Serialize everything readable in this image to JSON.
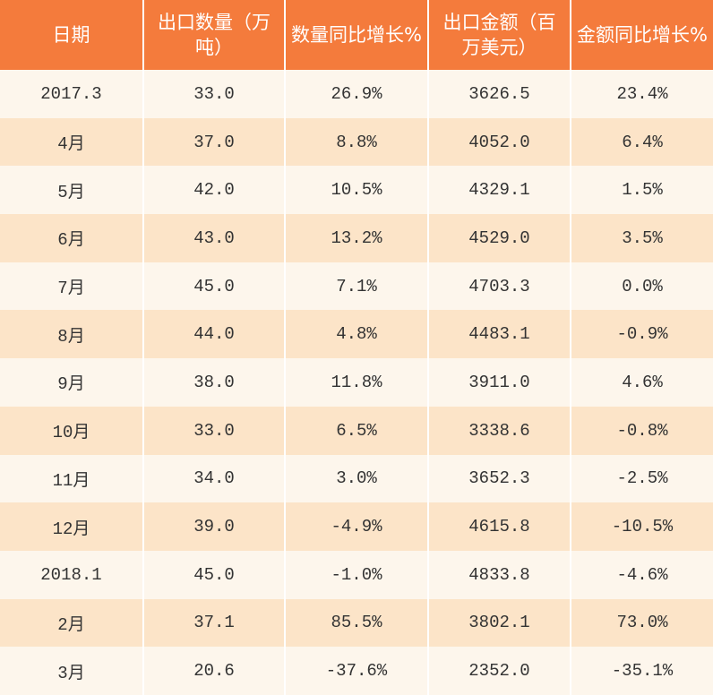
{
  "chart_data": {
    "type": "table",
    "columns": [
      "日期",
      "出口数量（万吨）",
      "数量同比增长%",
      "出口金额（百万美元）",
      "金额同比增长%"
    ],
    "rows": [
      [
        "2017.3",
        "33.0",
        "26.9%",
        "3626.5",
        "23.4%"
      ],
      [
        "4月",
        "37.0",
        "8.8%",
        "4052.0",
        "6.4%"
      ],
      [
        "5月",
        "42.0",
        "10.5%",
        "4329.1",
        "1.5%"
      ],
      [
        "6月",
        "43.0",
        "13.2%",
        "4529.0",
        "3.5%"
      ],
      [
        "7月",
        "45.0",
        "7.1%",
        "4703.3",
        "0.0%"
      ],
      [
        "8月",
        "44.0",
        "4.8%",
        "4483.1",
        "-0.9%"
      ],
      [
        "9月",
        "38.0",
        "11.8%",
        "3911.0",
        "4.6%"
      ],
      [
        "10月",
        "33.0",
        "6.5%",
        "3338.6",
        "-0.8%"
      ],
      [
        "11月",
        "34.0",
        "3.0%",
        "3652.3",
        "-2.5%"
      ],
      [
        "12月",
        "39.0",
        "-4.9%",
        "4615.8",
        "-10.5%"
      ],
      [
        "2018.1",
        "45.0",
        "-1.0%",
        "4833.8",
        "-4.6%"
      ],
      [
        "2月",
        "37.1",
        "85.5%",
        "3802.1",
        "73.0%"
      ],
      [
        "3月",
        "20.6",
        "-37.6%",
        "2352.0",
        "-35.1%"
      ]
    ]
  },
  "colors": {
    "header_bg": "#F47B3C",
    "header_text": "#FFFFFF",
    "row_light": "#FDF6EC",
    "row_dark": "#FCE4C8",
    "cell_text": "#333333"
  }
}
